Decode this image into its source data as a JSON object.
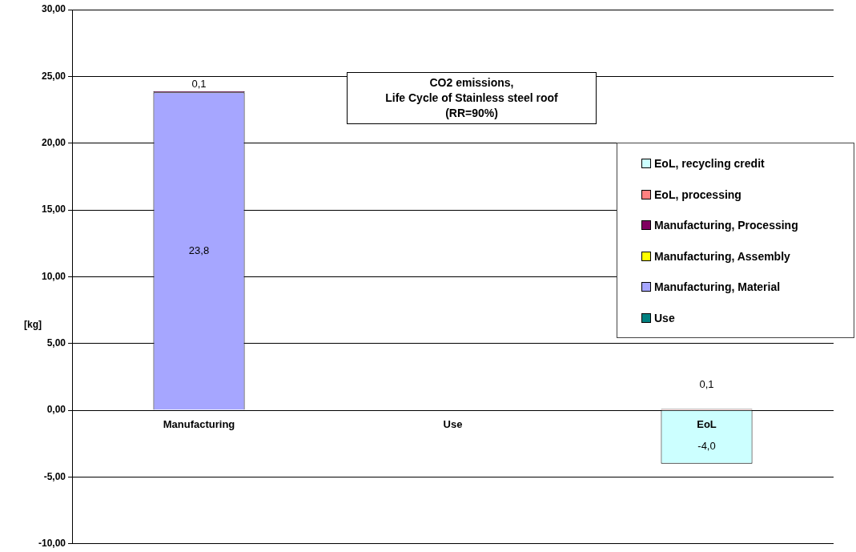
{
  "chart_data": {
    "type": "bar",
    "stacked": true,
    "title": "CO2 emissions,\nLife Cycle of Stainless steel roof\n(RR=90%)",
    "ylabel": "[kg]",
    "categories": [
      "Manufacturing",
      "Use",
      "EoL"
    ],
    "series": [
      {
        "name": "Use",
        "color": "#008080",
        "values": [
          null,
          null,
          null
        ]
      },
      {
        "name": "Manufacturing, Material",
        "color": "#a6a6ff",
        "values": [
          23.8,
          null,
          null
        ],
        "value_labels": [
          "23,8",
          null,
          null
        ]
      },
      {
        "name": "Manufacturing, Assembly",
        "color": "#ffff00",
        "values": [
          null,
          null,
          null
        ]
      },
      {
        "name": "Manufacturing, Processing",
        "color": "#800060",
        "values": [
          0.1,
          null,
          null
        ],
        "value_labels": [
          "0,1",
          null,
          null
        ]
      },
      {
        "name": "EoL, processing",
        "color": "#ff8080",
        "values": [
          null,
          null,
          0.1
        ],
        "value_labels": [
          null,
          null,
          "0,1"
        ]
      },
      {
        "name": "EoL, recycling credit",
        "color": "#ccffff",
        "values": [
          null,
          null,
          -4.0
        ],
        "value_labels": [
          null,
          null,
          "-4,0"
        ]
      }
    ],
    "ylim": [
      -10,
      30
    ],
    "yticks": [
      {
        "value": -10,
        "label": "-10,00"
      },
      {
        "value": -5,
        "label": "-5,00"
      },
      {
        "value": 0,
        "label": "0,00"
      },
      {
        "value": 5,
        "label": "5,00"
      },
      {
        "value": 10,
        "label": "10,00"
      },
      {
        "value": 15,
        "label": "15,00"
      },
      {
        "value": 20,
        "label": "20,00"
      },
      {
        "value": 25,
        "label": "25,00"
      },
      {
        "value": 30,
        "label": "30,00"
      }
    ],
    "grid": "y",
    "legend": "right"
  }
}
